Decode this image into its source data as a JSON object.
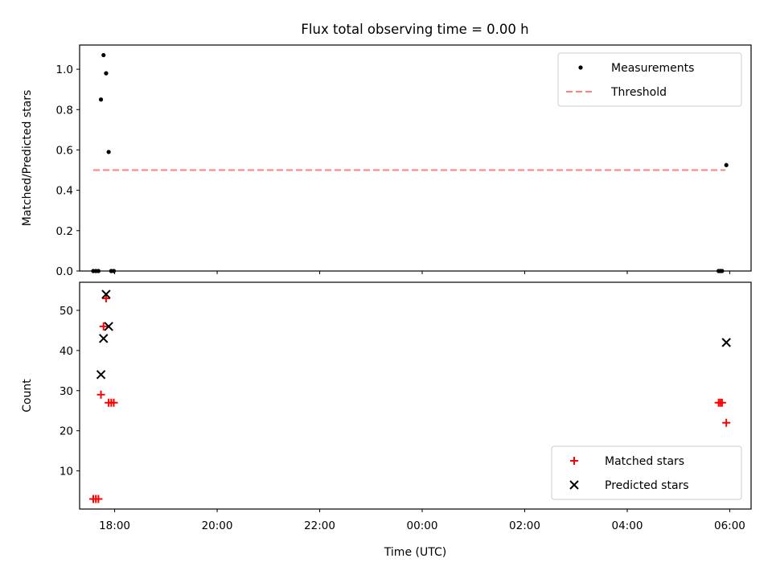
{
  "title": "Flux total observing time = 0.00 h",
  "colors": {
    "measurement": "#000000",
    "threshold": "#ff7f7f",
    "matched": "#ff0000",
    "predicted": "#000000"
  },
  "chart_data": [
    {
      "type": "scatter",
      "ylabel": "Matched/Predicted stars",
      "ylim": [
        0,
        1.12
      ],
      "yticks": [
        "0.0",
        "0.2",
        "0.4",
        "0.6",
        "0.8",
        "1.0"
      ],
      "xlim": [
        "17:19",
        "06:25"
      ],
      "legend": {
        "position": "top-right",
        "entries": [
          "Measurements",
          "Threshold"
        ]
      },
      "series": [
        {
          "name": "Measurements",
          "marker": "dot",
          "points": [
            {
              "x": "17:35",
              "y": 0.0
            },
            {
              "x": "17:38",
              "y": 0.0
            },
            {
              "x": "17:41",
              "y": 0.0
            },
            {
              "x": "17:44",
              "y": 0.85
            },
            {
              "x": "17:47",
              "y": 1.07
            },
            {
              "x": "17:50",
              "y": 0.98
            },
            {
              "x": "17:53",
              "y": 0.59
            },
            {
              "x": "17:56",
              "y": 0.0
            },
            {
              "x": "17:59",
              "y": 0.0
            },
            {
              "x": "05:47",
              "y": 0.0
            },
            {
              "x": "05:49",
              "y": 0.0
            },
            {
              "x": "05:51",
              "y": 0.0
            },
            {
              "x": "05:56",
              "y": 0.525
            }
          ]
        },
        {
          "name": "Threshold",
          "style": "dashed",
          "points": [
            {
              "x": "17:35",
              "y": 0.5
            },
            {
              "x": "05:55",
              "y": 0.5
            }
          ]
        }
      ]
    },
    {
      "type": "scatter",
      "ylabel": "Count",
      "xlabel": "Time (UTC)",
      "ylim": [
        0.5,
        57
      ],
      "yticks": [
        "10",
        "20",
        "30",
        "40",
        "50"
      ],
      "xlim": [
        "17:19",
        "06:25"
      ],
      "xticks": [
        "18:00",
        "20:00",
        "22:00",
        "00:00",
        "02:00",
        "04:00",
        "06:00"
      ],
      "legend": {
        "position": "bottom-right",
        "entries": [
          "Matched stars",
          "Predicted stars"
        ]
      },
      "series": [
        {
          "name": "Matched stars",
          "marker": "plus",
          "points": [
            {
              "x": "17:35",
              "y": 3
            },
            {
              "x": "17:38",
              "y": 3
            },
            {
              "x": "17:41",
              "y": 3
            },
            {
              "x": "17:44",
              "y": 29
            },
            {
              "x": "17:47",
              "y": 46
            },
            {
              "x": "17:50",
              "y": 53
            },
            {
              "x": "17:53",
              "y": 27
            },
            {
              "x": "17:56",
              "y": 27
            },
            {
              "x": "17:59",
              "y": 27
            },
            {
              "x": "05:47",
              "y": 27
            },
            {
              "x": "05:49",
              "y": 27
            },
            {
              "x": "05:51",
              "y": 27
            },
            {
              "x": "05:56",
              "y": 22
            }
          ]
        },
        {
          "name": "Predicted stars",
          "marker": "x",
          "points": [
            {
              "x": "17:44",
              "y": 34
            },
            {
              "x": "17:47",
              "y": 43
            },
            {
              "x": "17:50",
              "y": 54
            },
            {
              "x": "17:53",
              "y": 46
            },
            {
              "x": "05:56",
              "y": 42
            }
          ]
        }
      ]
    }
  ]
}
